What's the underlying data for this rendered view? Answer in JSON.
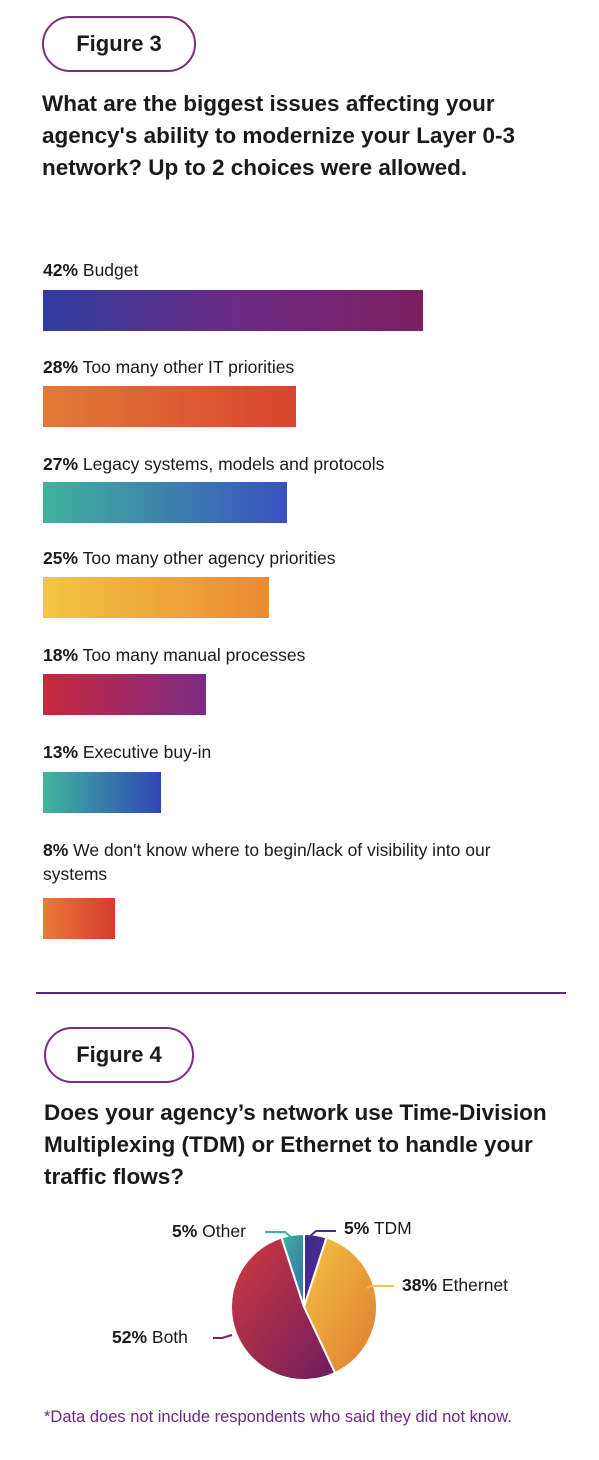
{
  "figure3": {
    "title": "Figure 3",
    "question": "What are the biggest issues affecting your agency's ability to modernize your Layer 0-3 network? Up to 2 choices were allowed."
  },
  "figure4": {
    "title": "Figure 4",
    "question": "Does your agency’s network use Time-Division Multiplexing (TDM) or Ethernet to handle your traffic flows?"
  },
  "footnote": "*Data does not include respondents who said they did not know.",
  "chart_data": [
    {
      "type": "bar",
      "orientation": "horizontal",
      "categories": [
        "Budget",
        "Too many other IT priorities",
        "Legacy systems, models and protocols",
        "Too many other agency priorities",
        "Too many manual processes",
        "Executive buy-in",
        "We don't know where to begin/lack of visibility into our systems"
      ],
      "values": [
        42,
        28,
        27,
        25,
        18,
        13,
        8
      ],
      "value_labels": [
        "42%",
        "28%",
        "27%",
        "25%",
        "18%",
        "13%",
        "8%"
      ],
      "unit": "%",
      "bar_gradients": [
        [
          "#2e3d9e",
          "#6a2a86",
          "#7e1f60"
        ],
        [
          "#e07a36",
          "#d9442e"
        ],
        [
          "#3fb39a",
          "#3a51c0"
        ],
        [
          "#f3c542",
          "#ea8a34"
        ],
        [
          "#c8283c",
          "#7c2a86"
        ],
        [
          "#40b59c",
          "#2f46b5"
        ],
        [
          "#ea7a34",
          "#d63a30"
        ]
      ]
    },
    {
      "type": "pie",
      "slices": [
        {
          "label": "TDM",
          "value": 5,
          "value_label": "5%",
          "colors": [
            "#3a2a8a",
            "#5a2a8f"
          ]
        },
        {
          "label": "Ethernet",
          "value": 38,
          "value_label": "38%",
          "colors": [
            "#f2c441",
            "#e07a33"
          ]
        },
        {
          "label": "Both",
          "value": 52,
          "value_label": "52%",
          "colors": [
            "#d03a3e",
            "#6e1c5e"
          ]
        },
        {
          "label": "Other",
          "value": 5,
          "value_label": "5%",
          "colors": [
            "#3fb39a",
            "#2f6fb0"
          ]
        }
      ]
    }
  ]
}
